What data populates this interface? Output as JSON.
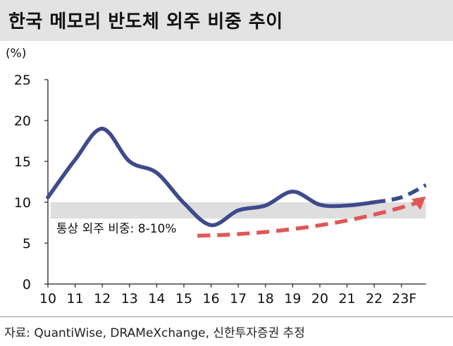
{
  "title": "한국 메모리 반도체 외주 비중 추이",
  "source": "자료: QuantiWise, DRAMeXchange, 신한투자증권 추정",
  "chart_data": {
    "type": "line",
    "y_unit": "(%)",
    "ylim": [
      0,
      25
    ],
    "y_ticks": [
      0,
      5,
      10,
      15,
      20,
      25
    ],
    "categories": [
      "10",
      "11",
      "12",
      "13",
      "14",
      "15",
      "16",
      "17",
      "18",
      "19",
      "20",
      "21",
      "22",
      "23F"
    ],
    "grid": false,
    "series": [
      {
        "color": "#3d4a8c",
        "x": [
          10,
          11,
          12,
          13,
          14,
          15,
          16,
          17,
          18,
          19,
          20,
          21,
          22
        ],
        "values": [
          10.6,
          15.2,
          19.0,
          15.0,
          13.6,
          9.9,
          7.2,
          9.0,
          9.6,
          11.3,
          9.7,
          9.6,
          10.0
        ],
        "style": "solid"
      },
      {
        "color": "#3d4a8c",
        "x": [
          22,
          23,
          23.9
        ],
        "values": [
          10.0,
          10.6,
          12.1
        ],
        "style": "dashed"
      }
    ],
    "band": {
      "from": 8,
      "to": 10,
      "color": "#dedede"
    },
    "annotation": {
      "text": "통상 외주 비중: 8-10%",
      "arrow_color": "#e05757",
      "arrow_x": [
        15.5,
        23.9
      ],
      "arrow_values": [
        5.9,
        10.7
      ]
    }
  }
}
